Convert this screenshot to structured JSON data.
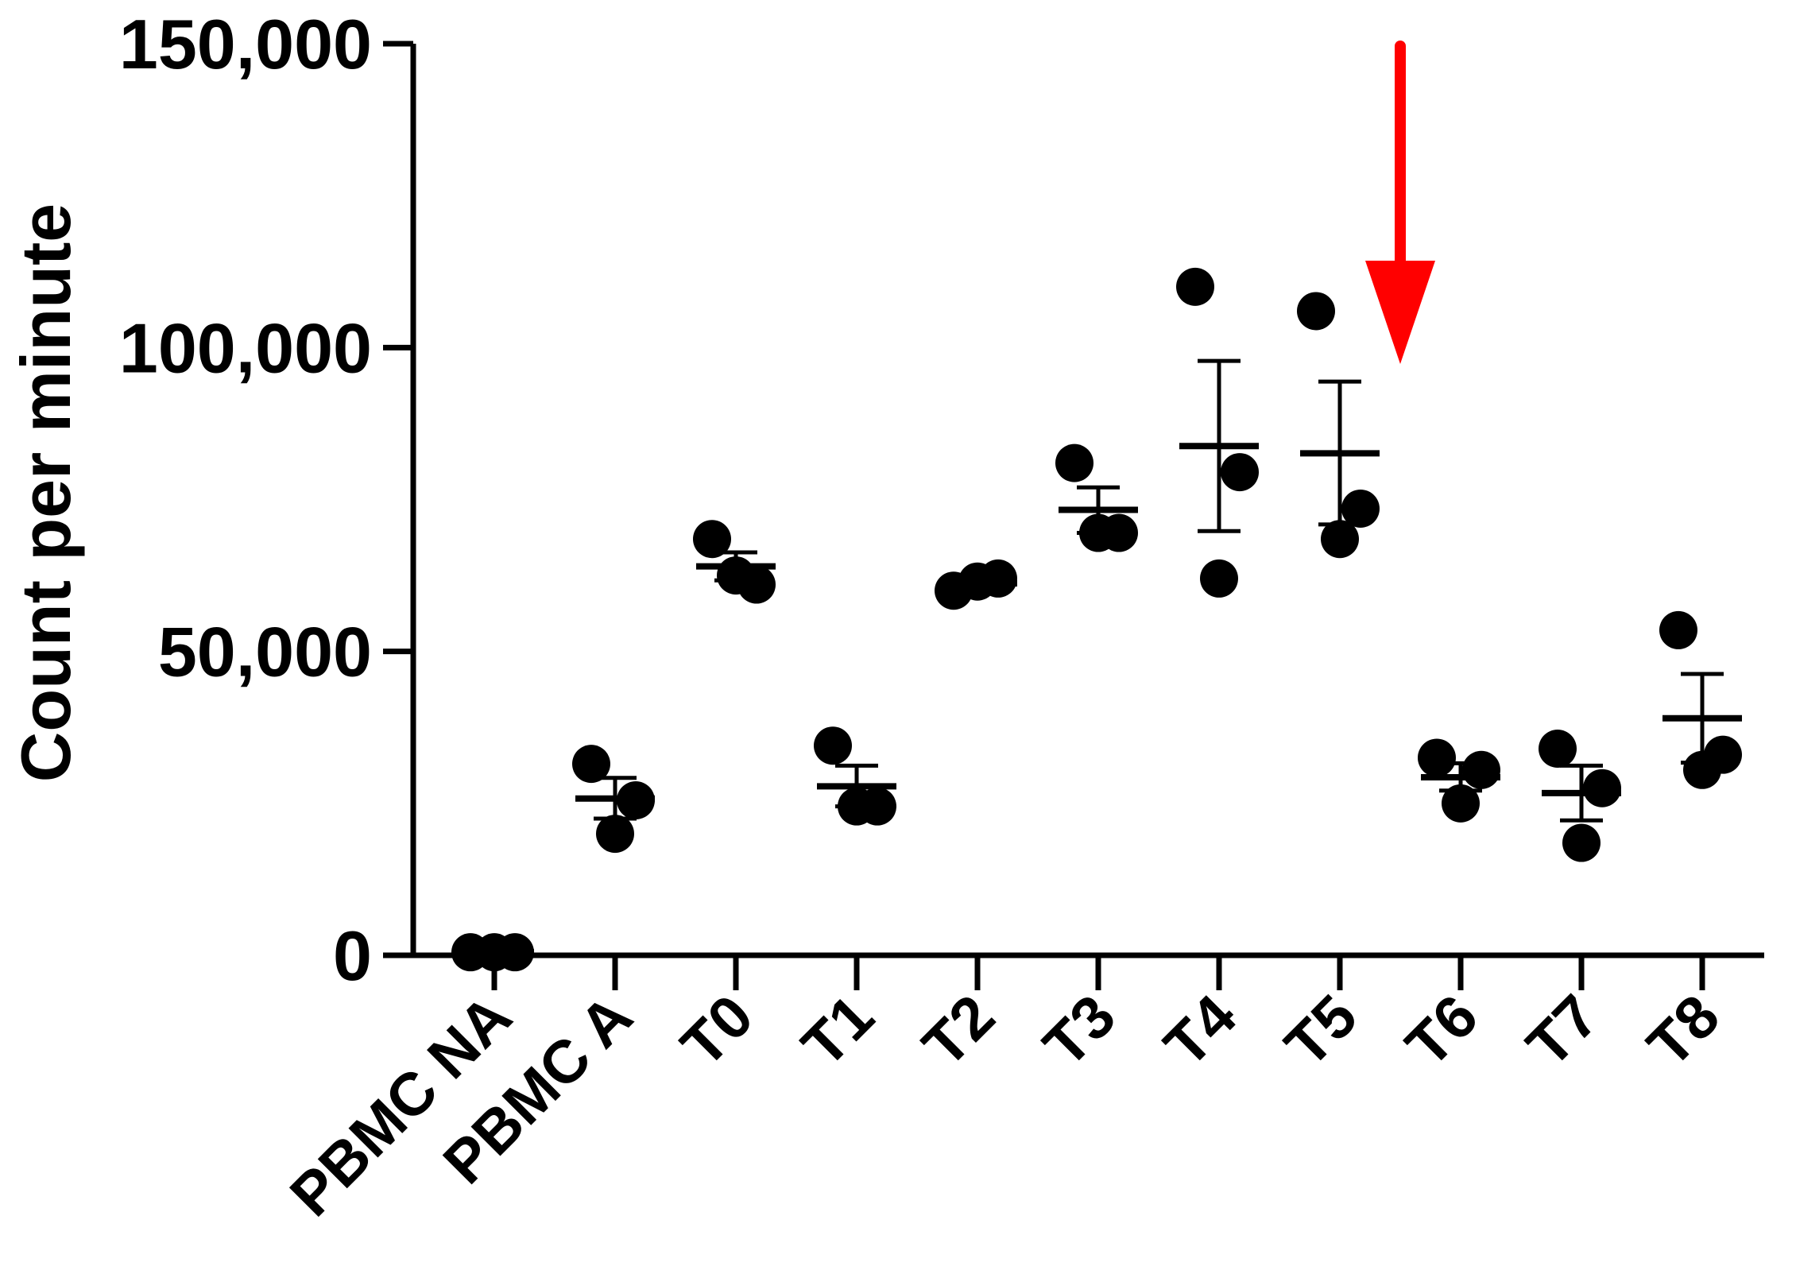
{
  "chart_data": {
    "type": "scatter",
    "ylabel": "Count per minute",
    "ylim": [
      0,
      150000
    ],
    "yticks": [
      0,
      50000,
      100000,
      150000
    ],
    "ytick_labels": [
      "0",
      "50,000",
      "100,000",
      "150,000"
    ],
    "categories": [
      "PBMC NA",
      "PBMC A",
      "T0",
      "T1",
      "T2",
      "T3",
      "T4",
      "T5",
      "T6",
      "T7",
      "T8"
    ],
    "groups": [
      {
        "category": "PBMC NA",
        "points": [
          500,
          500,
          500
        ],
        "mean": 500,
        "sem_low": 500,
        "sem_high": 500
      },
      {
        "category": "PBMC A",
        "points": [
          31500,
          25500,
          20000
        ],
        "mean": 25800,
        "sem_low": 22500,
        "sem_high": 29200
      },
      {
        "category": "T0",
        "points": [
          68500,
          61000,
          62500
        ],
        "mean": 64000,
        "sem_low": 61700,
        "sem_high": 66300
      },
      {
        "category": "T1",
        "points": [
          34500,
          24500,
          24500
        ],
        "mean": 27800,
        "sem_low": 24500,
        "sem_high": 31200
      },
      {
        "category": "T2",
        "points": [
          60000,
          62000,
          61500
        ],
        "mean": 61200,
        "sem_low": 60600,
        "sem_high": 61800
      },
      {
        "category": "T3",
        "points": [
          81000,
          69500,
          69500
        ],
        "mean": 73300,
        "sem_low": 69500,
        "sem_high": 77000
      },
      {
        "category": "T4",
        "points": [
          110000,
          79500,
          62000
        ],
        "mean": 83800,
        "sem_low": 69800,
        "sem_high": 97800
      },
      {
        "category": "T5",
        "points": [
          106000,
          73500,
          68500
        ],
        "mean": 82600,
        "sem_low": 70900,
        "sem_high": 94400
      },
      {
        "category": "T6",
        "points": [
          32500,
          30500,
          25000
        ],
        "mean": 29300,
        "sem_low": 27100,
        "sem_high": 31600
      },
      {
        "category": "T7",
        "points": [
          34000,
          27500,
          18500
        ],
        "mean": 26700,
        "sem_low": 22200,
        "sem_high": 31200
      },
      {
        "category": "T8",
        "points": [
          53500,
          33000,
          30500
        ],
        "mean": 39000,
        "sem_low": 31700,
        "sem_high": 46300
      }
    ],
    "grid": false,
    "legend": "none",
    "colors": {
      "points": "#000000",
      "arrow": "#ff0000"
    },
    "annotations": [
      {
        "type": "arrow",
        "between": [
          "T5",
          "T6"
        ],
        "direction": "down",
        "color": "#ff0000"
      }
    ]
  }
}
